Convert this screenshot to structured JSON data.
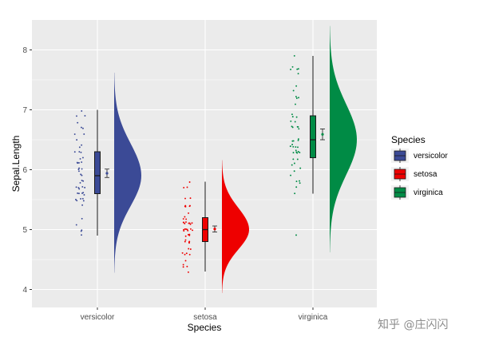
{
  "chart_data": {
    "type": "raincloud",
    "xlabel": "Species",
    "ylabel": "Sepal.Length",
    "categories": [
      "versicolor",
      "setosa",
      "virginica"
    ],
    "y_ticks": [
      4,
      5,
      6,
      7,
      8
    ],
    "ylim": [
      3.7,
      8.5
    ],
    "grid": true,
    "legend": {
      "title": "Species",
      "position": "right",
      "entries": [
        "versicolor",
        "setosa",
        "virginica"
      ]
    },
    "series": [
      {
        "name": "versicolor",
        "color": "#3B4A96",
        "points": [
          4.9,
          5.0,
          5.0,
          5.1,
          5.2,
          5.4,
          5.5,
          5.5,
          5.5,
          5.5,
          5.5,
          5.6,
          5.6,
          5.6,
          5.6,
          5.6,
          5.7,
          5.7,
          5.7,
          5.7,
          5.7,
          5.8,
          5.8,
          5.8,
          5.9,
          5.9,
          6.0,
          6.0,
          6.0,
          6.0,
          6.1,
          6.1,
          6.1,
          6.1,
          6.2,
          6.2,
          6.3,
          6.3,
          6.3,
          6.4,
          6.4,
          6.5,
          6.6,
          6.6,
          6.7,
          6.7,
          6.8,
          6.9,
          6.9,
          7.0
        ],
        "box": {
          "min": 4.9,
          "q1": 5.6,
          "median": 5.9,
          "q3": 6.3,
          "max": 7.0
        },
        "mean": 5.94,
        "ci": [
          5.87,
          6.01
        ],
        "density": {
          "min": 4.28,
          "max": 7.62,
          "mode": 5.9
        }
      },
      {
        "name": "setosa",
        "color": "#EE0000",
        "points": [
          4.3,
          4.4,
          4.4,
          4.4,
          4.5,
          4.6,
          4.6,
          4.6,
          4.6,
          4.7,
          4.7,
          4.8,
          4.8,
          4.8,
          4.8,
          4.8,
          4.9,
          4.9,
          4.9,
          4.9,
          5.0,
          5.0,
          5.0,
          5.0,
          5.0,
          5.0,
          5.0,
          5.0,
          5.1,
          5.1,
          5.1,
          5.1,
          5.1,
          5.1,
          5.1,
          5.1,
          5.2,
          5.2,
          5.2,
          5.3,
          5.4,
          5.4,
          5.4,
          5.4,
          5.4,
          5.5,
          5.5,
          5.7,
          5.7,
          5.8
        ],
        "box": {
          "min": 4.3,
          "q1": 4.8,
          "median": 5.0,
          "q3": 5.2,
          "max": 5.8
        },
        "mean": 5.01,
        "ci": [
          4.96,
          5.06
        ],
        "density": {
          "min": 3.94,
          "max": 6.16,
          "mode": 5.0
        }
      },
      {
        "name": "virginica",
        "color": "#008B45",
        "points": [
          4.9,
          5.6,
          5.7,
          5.8,
          5.8,
          5.8,
          5.9,
          6.0,
          6.0,
          6.1,
          6.1,
          6.2,
          6.2,
          6.3,
          6.3,
          6.3,
          6.3,
          6.3,
          6.3,
          6.4,
          6.4,
          6.4,
          6.4,
          6.4,
          6.5,
          6.5,
          6.5,
          6.5,
          6.7,
          6.7,
          6.7,
          6.7,
          6.7,
          6.8,
          6.8,
          6.9,
          6.9,
          6.9,
          7.1,
          7.2,
          7.2,
          7.2,
          7.3,
          7.4,
          7.6,
          7.7,
          7.7,
          7.7,
          7.7,
          7.9
        ],
        "box": {
          "min": 5.6,
          "q1": 6.2,
          "median": 6.5,
          "q3": 6.9,
          "max": 7.9
        },
        "mean": 6.59,
        "ci": [
          6.5,
          6.68
        ],
        "density": {
          "min": 4.62,
          "max": 8.4,
          "mode": 6.5
        }
      }
    ]
  },
  "watermark": "知乎 @庄闪闪"
}
